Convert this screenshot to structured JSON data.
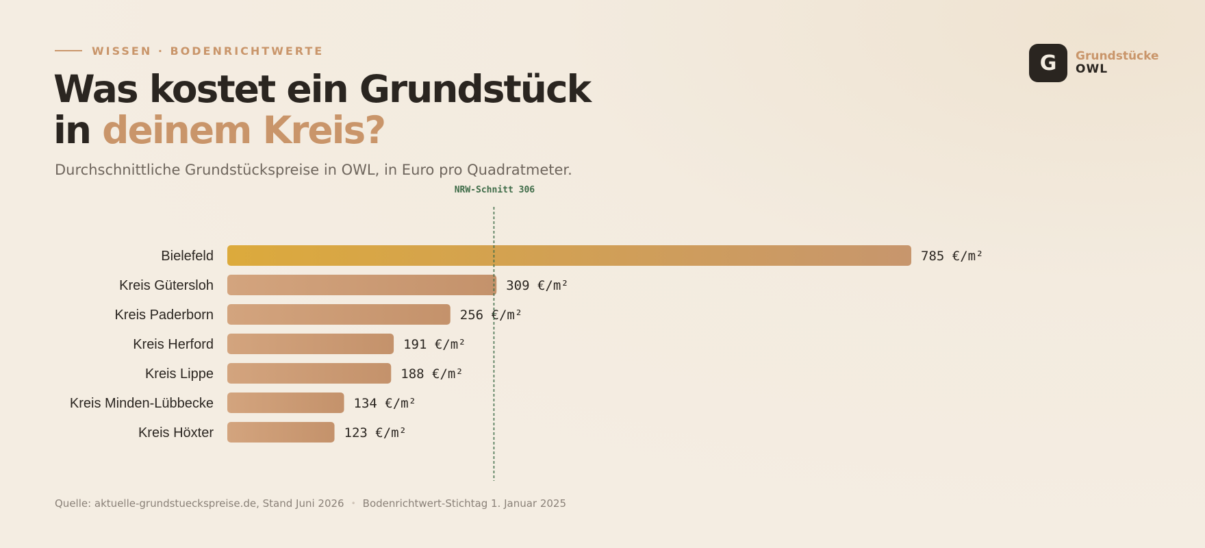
{
  "header": {
    "eyebrow": "WISSEN · BODENRICHTWERTE",
    "title_line1": "Was kostet ein Grundstück",
    "title_line2_prefix": "in ",
    "title_line2_accent": "deinem Kreis?",
    "subtitle": "Durchschnittliche Grundstückspreise in OWL, in Euro pro Quadratmeter."
  },
  "logo": {
    "letter": "G",
    "line1": "Grundstücke",
    "line2": "OWL"
  },
  "footer": {
    "source": "Quelle: aktuelle-grundstueckspreise.de, Stand Juni 2026",
    "separator": "•",
    "stichtag": "Bodenrichtwert-Stichtag 1. Januar 2025"
  },
  "colors": {
    "accent": "#c9956a",
    "highlight_gold": "#dba93e",
    "bar_light": "#d4a57f",
    "bar_dark": "#c4926b",
    "reference_line": "#3d6b47",
    "text_dark": "#2a2520"
  },
  "chart_data": {
    "type": "bar",
    "orientation": "horizontal",
    "categories": [
      "Bielefeld",
      "Kreis Gütersloh",
      "Kreis Paderborn",
      "Kreis Herford",
      "Kreis Lippe",
      "Kreis Minden-Lübbecke",
      "Kreis Höxter"
    ],
    "values": [
      785,
      309,
      256,
      191,
      188,
      134,
      123
    ],
    "value_labels": [
      "785 €/m²",
      "309 €/m²",
      "256 €/m²",
      "191 €/m²",
      "188 €/m²",
      "134 €/m²",
      "123 €/m²"
    ],
    "highlight_index": 0,
    "reference": {
      "label": "NRW-Schnitt 306",
      "value": 306
    },
    "xlim": [
      0,
      785
    ],
    "grid": false,
    "legend": "none"
  }
}
